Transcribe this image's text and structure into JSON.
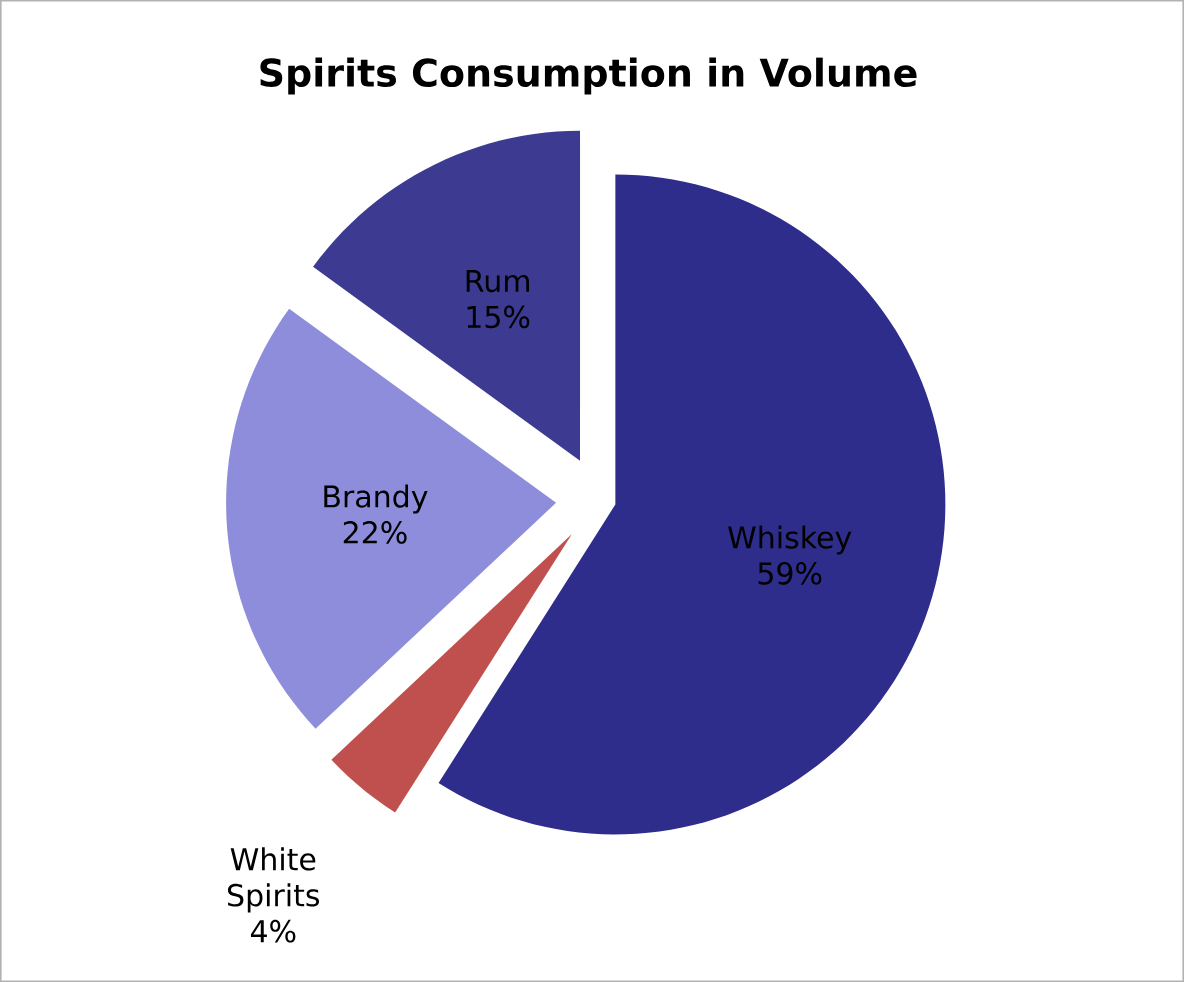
{
  "chart_data": {
    "type": "pie",
    "title": "Spirits Consumption in Volume",
    "categories": [
      "Whiskey",
      "White Spirits",
      "Brandy",
      "Rum"
    ],
    "values": [
      59,
      4,
      22,
      15
    ],
    "value_labels": [
      "59%",
      "4%",
      "22%",
      "15%"
    ],
    "colors": [
      "#2e2d8c",
      "#c0504d",
      "#8d8ddb",
      "#3d3b91"
    ]
  }
}
